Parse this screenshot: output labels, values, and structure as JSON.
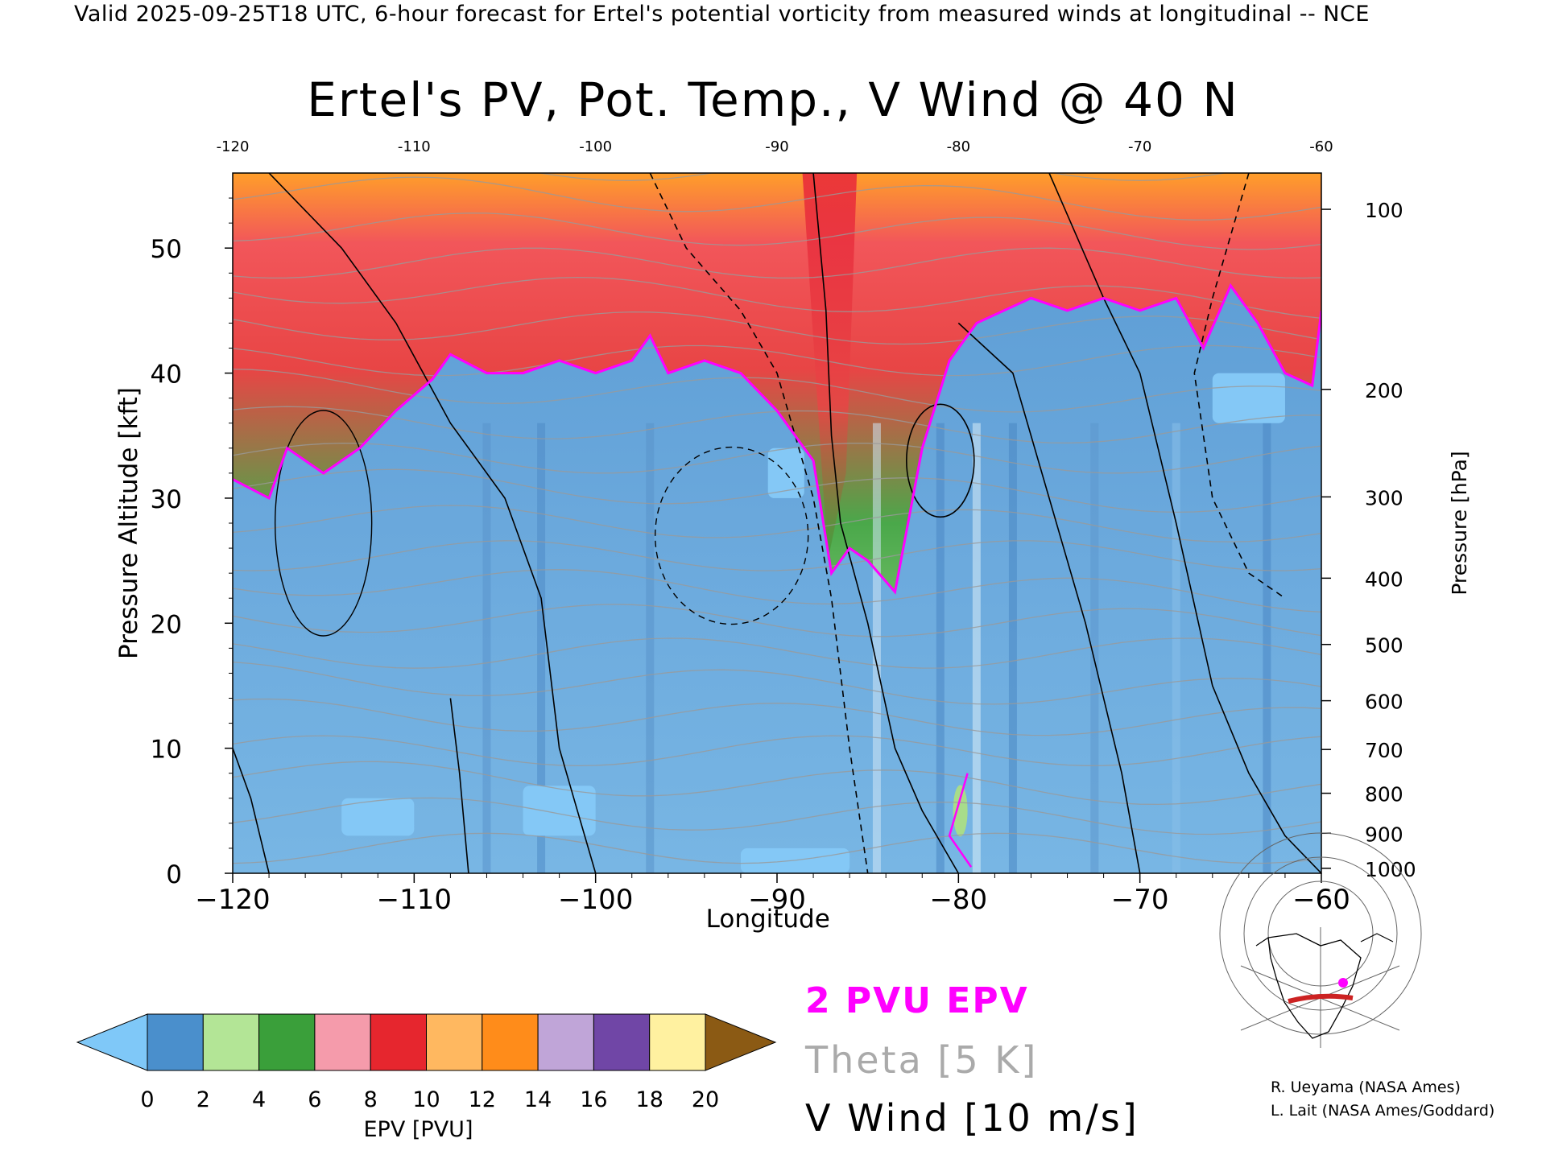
{
  "header": "Valid 2025-09-25T18 UTC, 6-hour forecast for Ertel's potential vorticity from measured winds at longitudinal -- NCE",
  "chart_data": {
    "type": "heatmap",
    "title": "Ertel's PV, Pot. Temp., V Wind @ 40 N",
    "xlabel": "Longitude",
    "ylabel_left": "Pressure Altitude [kft]",
    "ylabel_right": "Pressure [hPa]",
    "xlim": [
      -120,
      -60
    ],
    "ylim": [
      0,
      56
    ],
    "x_ticks": [
      "−120",
      "−110",
      "−100",
      "−90",
      "−80",
      "−70",
      "−60"
    ],
    "x_tick_values": [
      -120,
      -110,
      -100,
      -90,
      -80,
      -70,
      -60
    ],
    "top_ticks": [
      "-120",
      "-110",
      "-100",
      "-90",
      "-80",
      "-70",
      "-60"
    ],
    "y_left_ticks": [
      "0",
      "10",
      "20",
      "30",
      "40",
      "50"
    ],
    "y_left_values": [
      0,
      10,
      20,
      30,
      40,
      50
    ],
    "y_right_ticks": [
      {
        "label": "100",
        "kft": 53.1
      },
      {
        "label": "200",
        "kft": 38.7
      },
      {
        "label": "300",
        "kft": 30.1
      },
      {
        "label": "400",
        "kft": 23.6
      },
      {
        "label": "500",
        "kft": 18.3
      },
      {
        "label": "600",
        "kft": 13.8
      },
      {
        "label": "700",
        "kft": 9.9
      },
      {
        "label": "800",
        "kft": 6.4
      },
      {
        "label": "900",
        "kft": 3.2
      },
      {
        "label": "1000",
        "kft": 0.4
      }
    ],
    "tropopause_2pvu_kft": [
      [
        -120,
        31.5
      ],
      [
        -118,
        30
      ],
      [
        -117,
        34
      ],
      [
        -115,
        32
      ],
      [
        -113,
        34
      ],
      [
        -111,
        37
      ],
      [
        -109,
        39.5
      ],
      [
        -108,
        41.5
      ],
      [
        -106,
        40
      ],
      [
        -104,
        40
      ],
      [
        -102,
        41
      ],
      [
        -100,
        40
      ],
      [
        -98,
        41
      ],
      [
        -97,
        43
      ],
      [
        -96,
        40
      ],
      [
        -94,
        41
      ],
      [
        -92,
        40
      ],
      [
        -90,
        37
      ],
      [
        -89,
        35
      ],
      [
        -88,
        33
      ],
      [
        -87,
        24
      ],
      [
        -86,
        26
      ],
      [
        -85,
        25
      ],
      [
        -83.5,
        22.5
      ],
      [
        -82,
        34
      ],
      [
        -80.5,
        41
      ],
      [
        -79,
        44
      ],
      [
        -77.5,
        45
      ],
      [
        -76,
        46
      ],
      [
        -74,
        45
      ],
      [
        -72,
        46
      ],
      [
        -70,
        45
      ],
      [
        -68,
        46
      ],
      [
        -66.5,
        42
      ],
      [
        -65,
        47
      ],
      [
        -63.5,
        44
      ],
      [
        -62,
        40
      ],
      [
        -60.5,
        39
      ],
      [
        -60,
        45
      ]
    ],
    "tropopause_color": "#ff00ff",
    "colorbar": {
      "label": "EPV [PVU]",
      "ticks": [
        "0",
        "2",
        "4",
        "6",
        "8",
        "10",
        "12",
        "14",
        "16",
        "18",
        "20"
      ],
      "colors": [
        "#7fc8f8",
        "#4a8fcc",
        "#b3e596",
        "#3a9f3a",
        "#f59bab",
        "#e6262e",
        "#ffb860",
        "#ff8c1a",
        "#c0a5d8",
        "#7046a6",
        "#fff1a0",
        "#8b5a14"
      ],
      "min": 0,
      "max": 20
    }
  },
  "legend": {
    "pv": "2 PVU EPV",
    "theta": "Theta [5 K]",
    "vwind": "V Wind [10 m/s]"
  },
  "credits": {
    "line1": "R. Ueyama (NASA Ames)",
    "line2": "L. Lait (NASA Ames/Goddard)"
  },
  "map_inset": {
    "band_color": "#cc2222",
    "marker_color": "#ff00ff"
  }
}
